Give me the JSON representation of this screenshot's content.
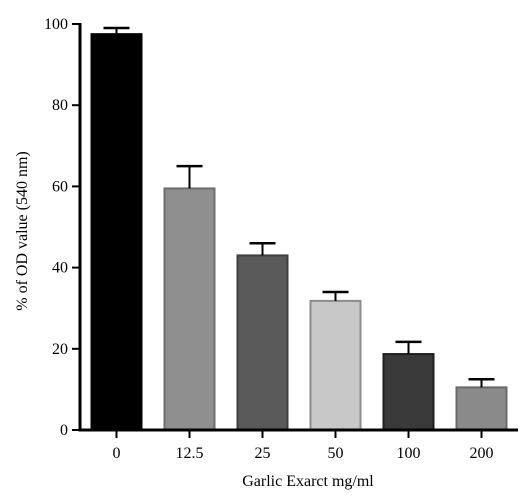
{
  "chart_data": {
    "type": "bar",
    "title": "",
    "xlabel": "Garlic Exarct mg/ml",
    "ylabel": "% of OD value (540 nm)",
    "categories": [
      "0",
      "12.5",
      "25",
      "50",
      "100",
      "200"
    ],
    "values": [
      97.5,
      59.5,
      43,
      31.8,
      18.7,
      10.5
    ],
    "errors": [
      1.5,
      5.5,
      3,
      2.2,
      3,
      2
    ],
    "ylim": [
      0,
      100
    ],
    "yticks": [
      "0",
      "20",
      "40",
      "60",
      "80",
      "100"
    ],
    "grid": false,
    "legend": "none",
    "colors": {
      "fills": [
        "#000000",
        "#8f8f8f",
        "#5a5a5a",
        "#c8c8c8",
        "#3a3a3a",
        "#8a8a8a"
      ],
      "edges": [
        "#000000",
        "#6e6e6e",
        "#3e3e3e",
        "#8c8c8c",
        "#1e1e1e",
        "#6a6a6a"
      ],
      "axis": "#000000"
    }
  }
}
